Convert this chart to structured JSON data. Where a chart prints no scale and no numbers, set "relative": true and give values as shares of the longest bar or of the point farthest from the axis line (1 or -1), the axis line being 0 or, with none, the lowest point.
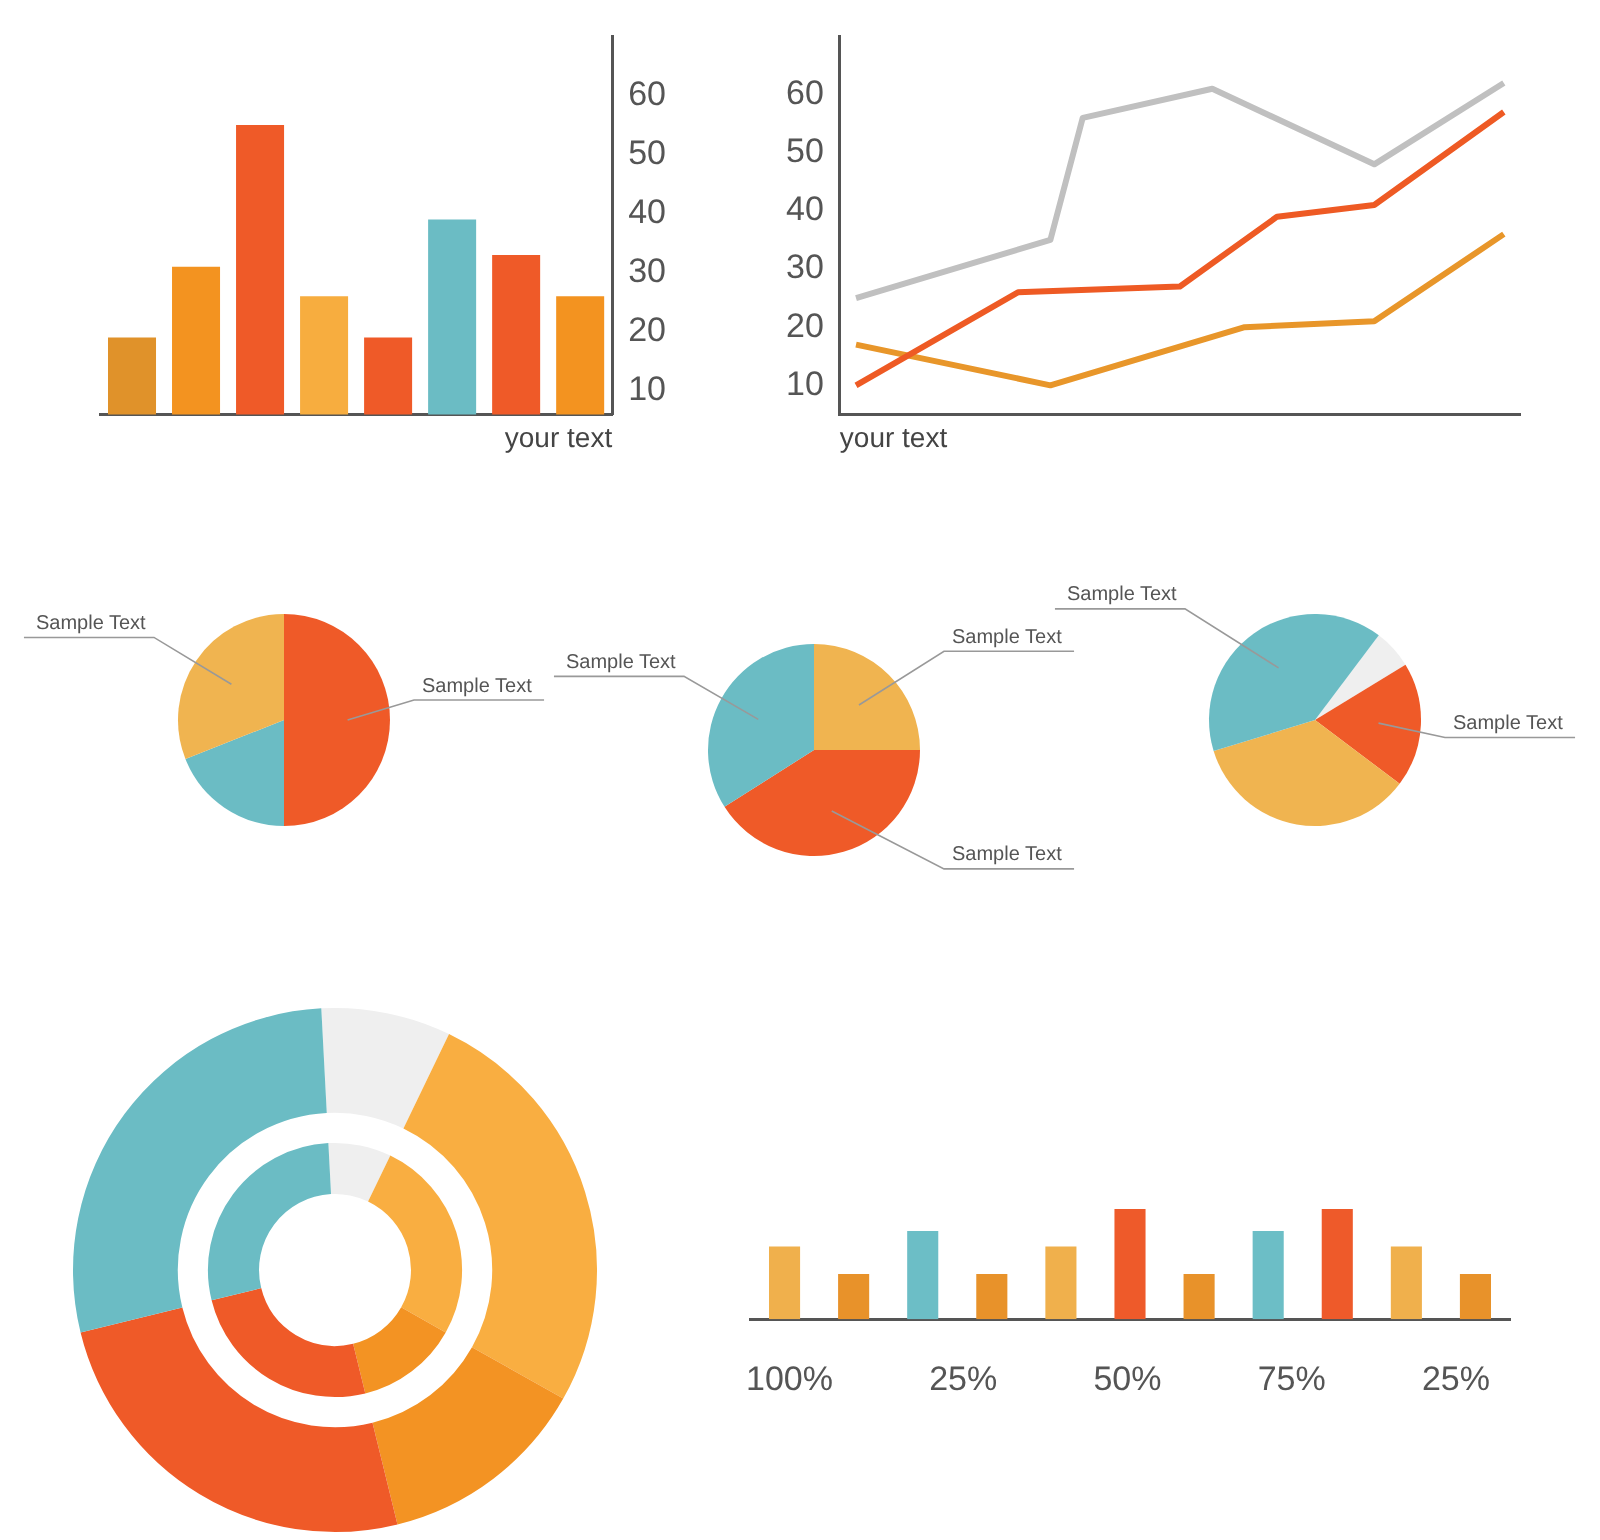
{
  "chart_data": [
    {
      "type": "bar",
      "categories": [
        null,
        null,
        null,
        null,
        null,
        null,
        null,
        null
      ],
      "values": [
        19,
        31,
        55,
        26,
        19,
        39,
        33,
        26
      ],
      "colors": [
        "#e0922a",
        "#f39320",
        "#ef5a28",
        "#f7ad3f",
        "#ef5a28",
        "#6bbcc4",
        "#ef5a28",
        "#f39320"
      ],
      "ylim": [
        6,
        70
      ],
      "yticks": [
        10,
        20,
        30,
        40,
        50,
        60
      ],
      "xlabel": "your text",
      "tick_labels": "y"
    },
    {
      "type": "line",
      "categories": [
        null,
        null,
        null,
        null,
        null,
        null,
        null,
        null,
        null,
        null,
        null,
        null,
        null,
        null,
        null,
        null,
        null,
        null,
        null,
        null,
        null
      ],
      "series": [
        {
          "color": "#c0c0c0",
          "values": [
            25,
            null,
            null,
            null,
            null,
            null,
            35,
            56,
            null,
            null,
            null,
            61,
            null,
            null,
            null,
            null,
            48,
            null,
            null,
            null,
            62
          ]
        },
        {
          "color": "#ee5a24",
          "values": [
            10,
            null,
            null,
            null,
            null,
            26,
            null,
            null,
            null,
            null,
            27,
            null,
            null,
            39,
            null,
            null,
            41,
            null,
            null,
            null,
            57
          ]
        },
        {
          "color": "#e8962a",
          "values": [
            17,
            null,
            null,
            null,
            null,
            null,
            10,
            null,
            null,
            null,
            null,
            null,
            20,
            null,
            null,
            null,
            21,
            null,
            null,
            null,
            36
          ]
        }
      ],
      "ylim": [
        5,
        70
      ],
      "yticks": [
        10,
        20,
        30,
        40,
        50,
        60
      ],
      "xlabel": "your text",
      "tick_labels": "y"
    },
    {
      "type": "pie",
      "categories": [
        "Sample Text",
        null,
        "Sample Text"
      ],
      "values": [
        50,
        19,
        31
      ],
      "colors": [
        "#ef5a28",
        "#6bbcc4",
        "#f0b450"
      ]
    },
    {
      "type": "pie",
      "categories": [
        "Sample Text",
        "Sample Text",
        "Sample Text"
      ],
      "values": [
        25,
        41,
        34
      ],
      "colors": [
        "#f0b450",
        "#ef5a28",
        "#6bbcc4"
      ]
    },
    {
      "type": "pie",
      "categories": [
        null,
        "Sample Text",
        null,
        "Sample Text"
      ],
      "values": [
        6,
        19,
        35,
        40
      ],
      "colors": [
        "#efefef",
        "#ef5a28",
        "#f0b450",
        "#6bbcc4"
      ]
    },
    {
      "type": "donut",
      "categories": [
        null,
        null,
        null,
        null,
        null
      ],
      "series": [
        {
          "colors": [
            "#efefef",
            "#f9ae41",
            "#f39323",
            "#ef5a28",
            "#6bbcc4"
          ],
          "values": [
            8,
            26,
            13,
            25,
            28
          ]
        },
        {
          "colors": [
            "#efefef",
            "#f9ae41",
            "#f39323",
            "#ef5a28",
            "#6bbcc4"
          ],
          "values": [
            8,
            26,
            13,
            25,
            28
          ]
        }
      ]
    },
    {
      "type": "bar",
      "relative": true,
      "categories": [
        null,
        null,
        null,
        null,
        null,
        null,
        null,
        null,
        null,
        null,
        null
      ],
      "values": [
        0.66,
        0.41,
        0.8,
        0.41,
        0.66,
        1,
        0.41,
        0.8,
        1,
        0.66,
        0.41
      ],
      "colors": [
        "#f0b04c",
        "#e8922a",
        "#6cbec6",
        "#e8922a",
        "#f0b04c",
        "#ee5a2a",
        "#e8922a",
        "#6cbec6",
        "#ee5a2a",
        "#f0b04c",
        "#e8922a"
      ],
      "annotations": [
        "100%",
        "25%",
        "50%",
        "75%",
        "25%"
      ]
    }
  ]
}
